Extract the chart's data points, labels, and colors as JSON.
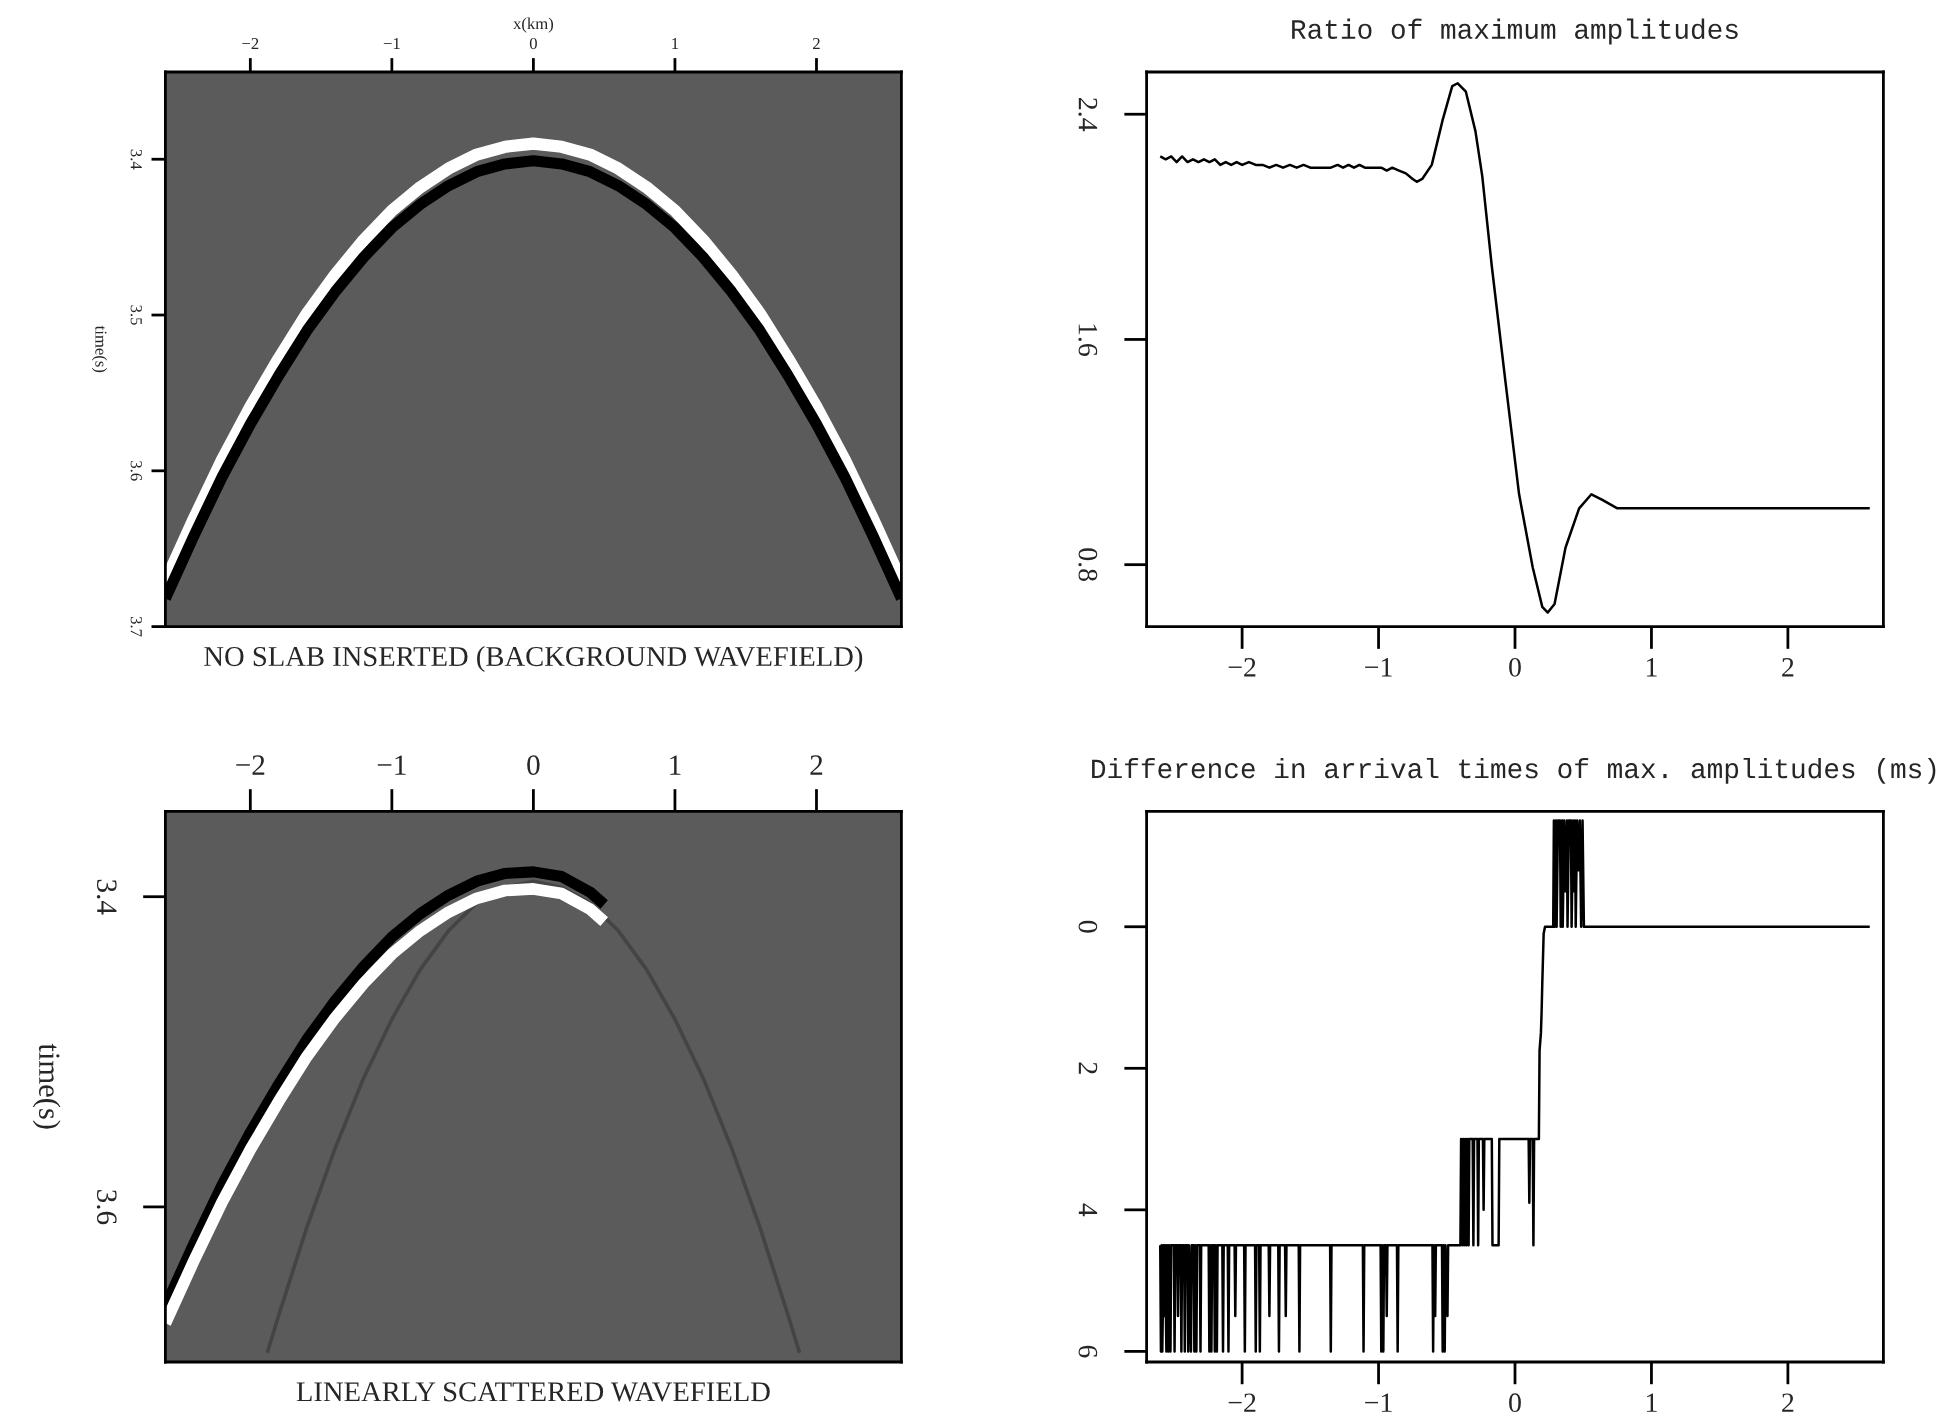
{
  "chart_data": [
    {
      "type": "line",
      "title": "NO SLAB INSERTED (BACKGROUND WAVEFIELD)",
      "xlabel": "x(km)",
      "ylabel": "time(s)",
      "xlim": [
        -2.6,
        2.6
      ],
      "xticks": [
        -2,
        -1,
        0,
        1,
        2
      ],
      "ylim": [
        3.7,
        3.344
      ],
      "yticks": [
        3.4,
        3.5,
        3.6,
        3.7
      ],
      "series": [
        {
          "color": "#ffffff",
          "x": [
            -2.6,
            -2.4,
            -2.2,
            -2.0,
            -1.8,
            -1.6,
            -1.4,
            -1.2,
            -1.0,
            -0.8,
            -0.6,
            -0.4,
            -0.2,
            0,
            0.2,
            0.4,
            0.6,
            0.8,
            1.0,
            1.2,
            1.4,
            1.6,
            1.8,
            2.0,
            2.2,
            2.4,
            2.6
          ],
          "values": [
            3.671,
            3.631,
            3.593,
            3.559,
            3.528,
            3.499,
            3.474,
            3.452,
            3.433,
            3.418,
            3.406,
            3.397,
            3.392,
            3.39,
            3.392,
            3.397,
            3.406,
            3.418,
            3.433,
            3.452,
            3.474,
            3.499,
            3.528,
            3.559,
            3.593,
            3.631,
            3.671
          ]
        },
        {
          "color": "#000000",
          "x": [
            -2.6,
            -2.4,
            -2.2,
            -2.0,
            -1.8,
            -1.6,
            -1.4,
            -1.2,
            -1.0,
            -0.8,
            -0.6,
            -0.4,
            -0.2,
            0,
            0.2,
            0.4,
            0.6,
            0.8,
            1.0,
            1.2,
            1.4,
            1.6,
            1.8,
            2.0,
            2.2,
            2.4,
            2.6
          ],
          "values": [
            3.682,
            3.642,
            3.604,
            3.57,
            3.539,
            3.51,
            3.485,
            3.463,
            3.444,
            3.429,
            3.417,
            3.408,
            3.403,
            3.401,
            3.403,
            3.408,
            3.417,
            3.429,
            3.444,
            3.463,
            3.485,
            3.51,
            3.539,
            3.57,
            3.604,
            3.642,
            3.682
          ]
        }
      ]
    },
    {
      "type": "line",
      "title": "Ratio of maximum amplitudes",
      "xlim": [
        -2.7,
        2.7
      ],
      "xticks": [
        -2,
        -1,
        0,
        1,
        2
      ],
      "ylim": [
        0.58,
        2.55
      ],
      "yticks": [
        0.8,
        1.6,
        2.4
      ],
      "series": [
        {
          "color": "#000000",
          "x": [
            -2.6,
            -2.56,
            -2.52,
            -2.48,
            -2.44,
            -2.4,
            -2.36,
            -2.32,
            -2.28,
            -2.24,
            -2.2,
            -2.16,
            -2.12,
            -2.08,
            -2.04,
            -2.0,
            -1.95,
            -1.9,
            -1.85,
            -1.8,
            -1.75,
            -1.7,
            -1.65,
            -1.6,
            -1.55,
            -1.5,
            -1.4,
            -1.35,
            -1.3,
            -1.26,
            -1.22,
            -1.18,
            -1.14,
            -1.1,
            -1.06,
            -1.02,
            -0.98,
            -0.94,
            -0.9,
            -0.85,
            -0.8,
            -0.75,
            -0.72,
            -0.68,
            -0.61,
            -0.53,
            -0.46,
            -0.42,
            -0.36,
            -0.29,
            -0.24,
            -0.17,
            -0.07,
            0.03,
            0.13,
            0.2,
            0.24,
            0.29,
            0.37,
            0.47,
            0.56,
            0.64,
            0.75,
            2.6
          ],
          "values": [
            2.25,
            2.24,
            2.25,
            2.23,
            2.25,
            2.23,
            2.24,
            2.23,
            2.24,
            2.23,
            2.24,
            2.22,
            2.23,
            2.22,
            2.23,
            2.22,
            2.23,
            2.22,
            2.22,
            2.21,
            2.22,
            2.21,
            2.22,
            2.21,
            2.22,
            2.21,
            2.21,
            2.21,
            2.22,
            2.21,
            2.22,
            2.21,
            2.22,
            2.21,
            2.21,
            2.21,
            2.21,
            2.2,
            2.21,
            2.2,
            2.19,
            2.17,
            2.16,
            2.17,
            2.22,
            2.38,
            2.5,
            2.51,
            2.48,
            2.34,
            2.18,
            1.86,
            1.45,
            1.05,
            0.79,
            0.65,
            0.63,
            0.66,
            0.86,
            1.0,
            1.05,
            1.03,
            1.0,
            1.0
          ]
        }
      ]
    },
    {
      "type": "line",
      "title": "LINEARLY SCATTERED WAVEFIELD",
      "ylabel": "time(s)",
      "xlim": [
        -2.6,
        2.6
      ],
      "xticks": [
        -2,
        -1,
        0,
        1,
        2
      ],
      "ylim": [
        3.7,
        3.345
      ],
      "yticks": [
        3.4,
        3.6
      ],
      "series": [
        {
          "color": "#444444",
          "x": [
            -1.88,
            -1.8,
            -1.6,
            -1.4,
            -1.2,
            -1.0,
            -0.8,
            -0.6,
            -0.4,
            -0.2,
            0,
            0.2,
            0.4,
            0.6,
            0.8,
            1.0,
            1.2,
            1.4,
            1.6,
            1.8,
            1.88
          ],
          "values": [
            3.694,
            3.67,
            3.613,
            3.562,
            3.517,
            3.479,
            3.447,
            3.422,
            3.404,
            3.394,
            3.39,
            3.394,
            3.404,
            3.422,
            3.447,
            3.479,
            3.517,
            3.562,
            3.613,
            3.67,
            3.694
          ]
        },
        {
          "color": "#000000",
          "x": [
            -2.6,
            -2.4,
            -2.2,
            -2.0,
            -1.8,
            -1.6,
            -1.4,
            -1.2,
            -1.0,
            -0.8,
            -0.6,
            -0.4,
            -0.2,
            0,
            0.2,
            0.4,
            0.5
          ],
          "values": [
            3.664,
            3.624,
            3.586,
            3.552,
            3.521,
            3.492,
            3.467,
            3.445,
            3.426,
            3.411,
            3.399,
            3.39,
            3.385,
            3.384,
            3.387,
            3.397,
            3.405
          ]
        },
        {
          "color": "#ffffff",
          "x": [
            -2.6,
            -2.4,
            -2.2,
            -2.0,
            -1.8,
            -1.6,
            -1.4,
            -1.2,
            -1.0,
            -0.8,
            -0.6,
            -0.4,
            -0.2,
            0,
            0.2,
            0.4,
            0.5
          ],
          "values": [
            3.675,
            3.635,
            3.597,
            3.563,
            3.532,
            3.503,
            3.478,
            3.456,
            3.437,
            3.422,
            3.41,
            3.401,
            3.396,
            3.395,
            3.398,
            3.408,
            3.416
          ]
        }
      ]
    },
    {
      "type": "line",
      "title": "Difference in arrival times of max. amplitudes (ms)",
      "xlim": [
        -2.7,
        2.7
      ],
      "xticks": [
        -2,
        -1,
        0,
        1,
        2
      ],
      "ylim": [
        6.15,
        -1.63
      ],
      "yticks": [
        0,
        2,
        4,
        6
      ],
      "series": [
        {
          "color": "#000000",
          "x": [
            -2.6,
            -2.595,
            -2.59,
            -2.585,
            -2.575,
            -2.57,
            -2.565,
            -2.555,
            -2.55,
            -2.54,
            -2.535,
            -2.525,
            -2.52,
            -2.5,
            -2.495,
            -2.49,
            -2.475,
            -2.47,
            -2.465,
            -2.45,
            -2.445,
            -2.44,
            -2.425,
            -2.42,
            -2.415,
            -2.4,
            -2.395,
            -2.39,
            -2.375,
            -2.37,
            -2.355,
            -2.35,
            -2.345,
            -2.335,
            -2.33,
            -2.31,
            -2.305,
            -2.3,
            -2.245,
            -2.24,
            -2.235,
            -2.225,
            -2.22,
            -2.205,
            -2.2,
            -2.195,
            -2.185,
            -2.18,
            -2.145,
            -2.14,
            -2.135,
            -2.105,
            -2.1,
            -2.095,
            -2.055,
            -2.05,
            -2.045,
            -1.985,
            -1.98,
            -1.975,
            -1.905,
            -1.9,
            -1.895,
            -1.875,
            -1.87,
            -1.865,
            -1.805,
            -1.8,
            -1.795,
            -1.735,
            -1.73,
            -1.725,
            -1.685,
            -1.68,
            -1.675,
            -1.585,
            -1.58,
            -1.575,
            -1.355,
            -1.35,
            -1.345,
            -1.115,
            -1.11,
            -1.105,
            -0.985,
            -0.98,
            -0.975,
            -0.965,
            -0.96,
            -0.945,
            -0.94,
            -0.935,
            -0.865,
            -0.86,
            -0.855,
            -0.605,
            -0.6,
            -0.595,
            -0.585,
            -0.58,
            -0.535,
            -0.53,
            -0.525,
            -0.515,
            -0.51,
            -0.495,
            -0.49,
            -0.4,
            -0.395,
            -0.385,
            -0.38,
            -0.37,
            -0.365,
            -0.355,
            -0.35,
            -0.34,
            -0.335,
            -0.31,
            -0.305,
            -0.3,
            -0.275,
            -0.27,
            -0.265,
            -0.235,
            -0.23,
            -0.225,
            -0.17,
            -0.165,
            -0.12,
            -0.115,
            0.1,
            0.105,
            0.11,
            0.13,
            0.135,
            0.14,
            0.175,
            0.18,
            0.19,
            0.195,
            0.2,
            0.21,
            0.22,
            0.28,
            0.285,
            0.29,
            0.3,
            0.305,
            0.315,
            0.33,
            0.335,
            0.345,
            0.35,
            0.36,
            0.37,
            0.38,
            0.385,
            0.395,
            0.41,
            0.415,
            0.425,
            0.43,
            0.44,
            0.445,
            0.455,
            0.465,
            0.475,
            0.485,
            0.495,
            0.505,
            2.6
          ],
          "values": [
            4.5,
            6,
            4.5,
            6,
            4.5,
            5.5,
            4.5,
            6,
            4.5,
            6,
            4.5,
            6,
            4.5,
            4.5,
            6,
            4.5,
            4.5,
            5.5,
            4.5,
            4.5,
            6,
            4.5,
            4.5,
            6,
            4.5,
            4.5,
            6,
            4.5,
            6,
            4.5,
            4.5,
            6,
            4.5,
            6,
            4.5,
            4.5,
            6,
            4.5,
            4.5,
            6,
            4.5,
            6,
            4.5,
            4.5,
            6,
            4.5,
            6,
            4.5,
            4.5,
            6,
            4.5,
            4.5,
            6,
            4.5,
            4.5,
            5.5,
            4.5,
            4.5,
            6,
            4.5,
            4.5,
            6,
            4.5,
            4.5,
            6,
            4.5,
            4.5,
            5.5,
            4.5,
            4.5,
            6,
            4.5,
            4.5,
            5.5,
            4.5,
            4.5,
            6,
            4.5,
            4.5,
            6,
            4.5,
            4.5,
            6,
            4.5,
            4.5,
            6,
            4.5,
            6,
            4.5,
            4.5,
            5.5,
            4.5,
            4.5,
            6,
            4.5,
            4.5,
            6,
            4.5,
            5.5,
            4.5,
            4.5,
            6,
            4.5,
            6,
            4.5,
            5.5,
            4.5,
            4.5,
            3,
            4.5,
            3,
            4.5,
            3,
            4.5,
            3,
            4.5,
            3,
            3,
            4.5,
            3,
            3,
            4.5,
            3,
            3,
            4,
            3,
            3,
            4.5,
            4.5,
            3,
            3,
            3.9,
            3,
            3,
            4.5,
            3,
            3,
            1.75,
            1.5,
            1.2,
            0.8,
            0.1,
            0,
            0,
            -1.5,
            0,
            -1.5,
            0,
            -1.5,
            -1.5,
            0,
            -1.5,
            0,
            -1.5,
            -0.5,
            -1.5,
            0,
            -1.5,
            -1.5,
            0,
            -1.5,
            -0.5,
            -1.5,
            0,
            -1.5,
            -0.8,
            -1.5,
            0,
            -1.5,
            0,
            0
          ]
        }
      ]
    }
  ]
}
